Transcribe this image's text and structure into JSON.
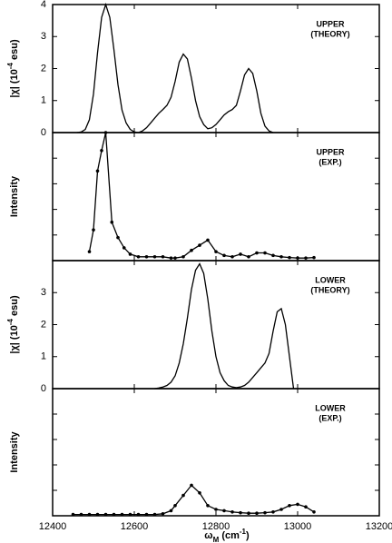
{
  "chart_data": [
    {
      "type": "line",
      "annotation": [
        "UPPER",
        "(THEORY)"
      ],
      "ylabel": [
        "|χ| (10",
        "-4",
        " esu)"
      ],
      "xlim": [
        12400,
        13200
      ],
      "xticks": [
        12400,
        12600,
        12800,
        13000,
        13200
      ],
      "xtick_labels": false,
      "ylim": [
        0,
        4
      ],
      "yticks": [
        0,
        1,
        2,
        3,
        4
      ],
      "ytick_labels": true,
      "markers": false,
      "color": "#000000",
      "x": [
        12460,
        12470,
        12480,
        12490,
        12500,
        12510,
        12520,
        12530,
        12540,
        12550,
        12560,
        12570,
        12580,
        12590,
        12600,
        12610,
        12620,
        12630,
        12640,
        12650,
        12660,
        12670,
        12680,
        12690,
        12700,
        12710,
        12720,
        12730,
        12740,
        12750,
        12760,
        12770,
        12780,
        12790,
        12800,
        12810,
        12820,
        12830,
        12840,
        12850,
        12860,
        12870,
        12880,
        12890,
        12900,
        12910,
        12920,
        12930,
        12940
      ],
      "values": [
        0,
        0.02,
        0.1,
        0.4,
        1.2,
        2.5,
        3.6,
        4.0,
        3.6,
        2.6,
        1.5,
        0.7,
        0.3,
        0.1,
        0.02,
        0,
        0.05,
        0.15,
        0.3,
        0.45,
        0.6,
        0.72,
        0.85,
        1.1,
        1.6,
        2.2,
        2.45,
        2.3,
        1.7,
        1.0,
        0.5,
        0.25,
        0.12,
        0.15,
        0.25,
        0.4,
        0.55,
        0.65,
        0.72,
        0.85,
        1.3,
        1.8,
        2.0,
        1.85,
        1.3,
        0.6,
        0.2,
        0.05,
        0
      ]
    },
    {
      "type": "line",
      "annotation": [
        "UPPER",
        "(EXP.)"
      ],
      "ylabel": [
        "Intensity"
      ],
      "xlim": [
        12400,
        13200
      ],
      "xticks": [
        12400,
        12600,
        12800,
        13000,
        13200
      ],
      "xtick_labels": false,
      "ylim": [
        0,
        5
      ],
      "yticks": [
        0,
        1,
        2,
        3,
        4,
        5
      ],
      "ytick_labels": false,
      "markers": true,
      "color": "#000000",
      "x": [
        12490,
        12500,
        12510,
        12520,
        12530,
        12545,
        12560,
        12575,
        12590,
        12610,
        12630,
        12650,
        12670,
        12690,
        12700,
        12720,
        12740,
        12760,
        12780,
        12800,
        12820,
        12840,
        12860,
        12880,
        12900,
        12920,
        12940,
        12960,
        12980,
        13000,
        13020,
        13040
      ],
      "values": [
        0.35,
        1.2,
        3.5,
        4.3,
        5.0,
        1.5,
        0.9,
        0.5,
        0.25,
        0.15,
        0.15,
        0.15,
        0.15,
        0.1,
        0.1,
        0.15,
        0.4,
        0.6,
        0.8,
        0.35,
        0.2,
        0.15,
        0.25,
        0.15,
        0.3,
        0.3,
        0.2,
        0.15,
        0.12,
        0.1,
        0.1,
        0.12
      ]
    },
    {
      "type": "line",
      "annotation": [
        "LOWER",
        "(THEORY)"
      ],
      "ylabel": [
        "|χ| (10",
        "-4",
        " esu)"
      ],
      "xlim": [
        12400,
        13200
      ],
      "xticks": [
        12400,
        12600,
        12800,
        13000,
        13200
      ],
      "xtick_labels": false,
      "ylim": [
        0,
        4
      ],
      "yticks": [
        0,
        1,
        2,
        3
      ],
      "ytick_labels": true,
      "markers": false,
      "color": "#000000",
      "x": [
        12650,
        12660,
        12670,
        12680,
        12690,
        12700,
        12710,
        12720,
        12730,
        12740,
        12750,
        12760,
        12770,
        12780,
        12790,
        12800,
        12810,
        12820,
        12830,
        12840,
        12850,
        12860,
        12870,
        12880,
        12890,
        12900,
        12910,
        12920,
        12930,
        12940,
        12950,
        12960,
        12970,
        12980,
        12990
      ],
      "values": [
        0,
        0.02,
        0.05,
        0.1,
        0.2,
        0.4,
        0.8,
        1.4,
        2.2,
        3.1,
        3.7,
        3.9,
        3.6,
        2.8,
        1.8,
        1.0,
        0.5,
        0.25,
        0.1,
        0.05,
        0.03,
        0.05,
        0.1,
        0.2,
        0.35,
        0.5,
        0.65,
        0.8,
        1.1,
        1.8,
        2.4,
        2.5,
        2.0,
        1.0,
        0
      ]
    },
    {
      "type": "line",
      "annotation": [
        "LOWER",
        "(EXP.)"
      ],
      "ylabel": [
        "Intensity"
      ],
      "xlabel": [
        "ω",
        "M",
        " (cm",
        "-1",
        ")"
      ],
      "xlim": [
        12400,
        13200
      ],
      "xticks": [
        12400,
        12600,
        12800,
        13000,
        13200
      ],
      "xtick_labels": true,
      "ylim": [
        0,
        5
      ],
      "yticks": [
        0,
        1,
        2,
        3,
        4,
        5
      ],
      "ytick_labels": false,
      "markers": true,
      "color": "#000000",
      "x": [
        12450,
        12470,
        12490,
        12510,
        12530,
        12550,
        12570,
        12590,
        12610,
        12630,
        12650,
        12670,
        12690,
        12700,
        12720,
        12740,
        12760,
        12780,
        12800,
        12820,
        12840,
        12860,
        12880,
        12900,
        12920,
        12940,
        12960,
        12980,
        13000,
        13020,
        13040
      ],
      "values": [
        0.05,
        0.05,
        0.05,
        0.05,
        0.05,
        0.05,
        0.05,
        0.05,
        0.05,
        0.05,
        0.05,
        0.08,
        0.2,
        0.4,
        0.8,
        1.2,
        0.9,
        0.4,
        0.25,
        0.2,
        0.15,
        0.12,
        0.1,
        0.1,
        0.12,
        0.15,
        0.25,
        0.4,
        0.45,
        0.35,
        0.15
      ]
    }
  ]
}
